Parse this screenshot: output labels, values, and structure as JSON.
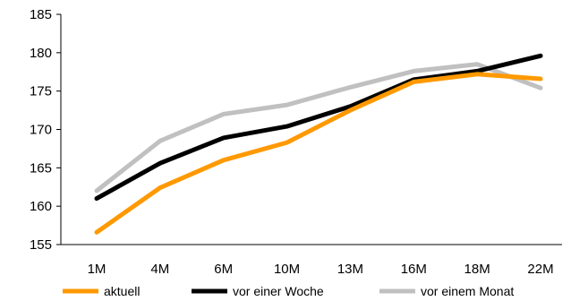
{
  "chart_data": {
    "type": "line",
    "title": "",
    "xlabel": "",
    "ylabel": "",
    "categories": [
      "1M",
      "4M",
      "6M",
      "10M",
      "13M",
      "16M",
      "18M",
      "22M"
    ],
    "ylim": [
      155,
      185
    ],
    "yticks": [
      155,
      160,
      165,
      170,
      175,
      180,
      185
    ],
    "grid": false,
    "legend_position": "bottom",
    "series": [
      {
        "name": "aktuell",
        "color": "#ff9900",
        "values": [
          156.6,
          162.4,
          166.0,
          168.3,
          172.5,
          176.2,
          177.2,
          176.6
        ]
      },
      {
        "name": "vor einer Woche",
        "color": "#000000",
        "values": [
          161.0,
          165.6,
          168.9,
          170.4,
          173.0,
          176.5,
          177.6,
          179.6
        ]
      },
      {
        "name": "vor einem Monat",
        "color": "#c0c0c0",
        "values": [
          162.0,
          168.5,
          172.0,
          173.2,
          175.5,
          177.6,
          178.5,
          175.4
        ]
      }
    ]
  }
}
